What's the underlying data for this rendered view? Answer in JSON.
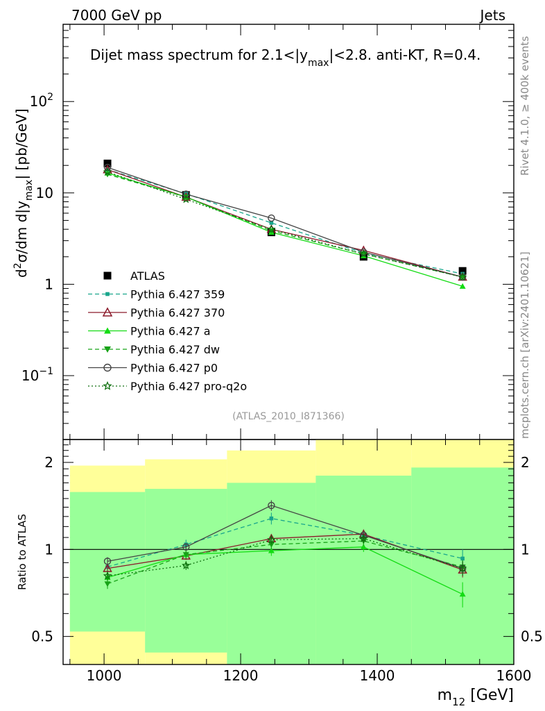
{
  "header": {
    "left": "7000 GeV pp",
    "right": "Jets"
  },
  "side_labels": {
    "rivet": "Rivet 4.1.0, ≥ 400k events",
    "mcplots": "mcplots.cern.ch [arXiv:2401.10621]"
  },
  "chart_data": [
    {
      "type": "line",
      "title_parts": {
        "pre": "Dijet mass spectrum for 2.1<|y",
        "sub": "max",
        "post": "|<2.8.  anti-KT, R=0.4."
      },
      "ylabel_parts": [
        "d",
        "2",
        "σ/dm d|y",
        "max",
        "| [pb/GeV]"
      ],
      "yscale": "log",
      "ylim": [
        0.02,
        700
      ],
      "y_ticks": [
        {
          "value": 0.1,
          "base": "10",
          "exp": "−1"
        },
        {
          "value": 1,
          "base": "1",
          "exp": ""
        },
        {
          "value": 10,
          "base": "10",
          "exp": ""
        },
        {
          "value": 100,
          "base": "10",
          "exp": "2"
        }
      ],
      "watermark": "(ATLAS_2010_I871366)",
      "x": [
        1005,
        1120,
        1245,
        1380,
        1525
      ],
      "data": {
        "name": "ATLAS",
        "values": [
          21,
          9.5,
          3.7,
          2.0,
          1.4
        ],
        "color": "#000000"
      },
      "series": [
        {
          "name": "Pythia 6.427 359",
          "values": [
            18.0,
            9.8,
            4.7,
            2.2,
            1.3
          ],
          "color": "#19a68c",
          "dash": "6,4",
          "marker": "square-small"
        },
        {
          "name": "Pythia 6.427 370",
          "values": [
            18.0,
            9.0,
            4.0,
            2.35,
            1.2
          ],
          "color": "#8b1a2b",
          "dash": "",
          "marker": "triangle-open"
        },
        {
          "name": "Pythia 6.427 a",
          "values": [
            16.5,
            9.0,
            3.7,
            2.05,
            0.95
          ],
          "color": "#14dc14",
          "dash": "",
          "marker": "triangle-filled"
        },
        {
          "name": "Pythia 6.427 dw",
          "values": [
            16.0,
            9.0,
            3.85,
            2.15,
            1.2
          ],
          "color": "#17a317",
          "dash": "6,4",
          "marker": "triangle-down"
        },
        {
          "name": "Pythia 6.427 p0",
          "values": [
            19.0,
            9.7,
            5.3,
            2.25,
            1.2
          ],
          "color": "#444444",
          "dash": "",
          "marker": "circle-open"
        },
        {
          "name": "Pythia 6.427 pro-q2o",
          "values": [
            17.0,
            8.5,
            4.0,
            2.15,
            1.2
          ],
          "color": "#0c6e0c",
          "dash": "2,3",
          "marker": "star-open"
        }
      ]
    },
    {
      "type": "line",
      "ylabel": "Ratio to ATLAS",
      "yscale": "log",
      "ylim": [
        0.4,
        2.4
      ],
      "y_ticks": [
        {
          "value": 0.5,
          "label": "0.5"
        },
        {
          "value": 1,
          "label": "1"
        },
        {
          "value": 2,
          "label": "2"
        }
      ],
      "xlim": [
        940,
        1600
      ],
      "x_ticks": [
        1000,
        1200,
        1400,
        1600
      ],
      "xlabel_parts": [
        "m",
        "12",
        " [GeV]"
      ],
      "x": [
        1005,
        1120,
        1245,
        1380,
        1525
      ],
      "bands": [
        {
          "x0": 950,
          "x1": 1060,
          "yellow": [
            0.35,
            1.95
          ],
          "green": [
            0.52,
            1.58
          ]
        },
        {
          "x0": 1060,
          "x1": 1180,
          "yellow": [
            0.35,
            2.05
          ],
          "green": [
            0.44,
            1.62
          ]
        },
        {
          "x0": 1180,
          "x1": 1310,
          "yellow": [
            0.35,
            2.2
          ],
          "green": [
            0.35,
            1.7
          ]
        },
        {
          "x0": 1310,
          "x1": 1450,
          "yellow": [
            0.35,
            2.45
          ],
          "green": [
            0.35,
            1.8
          ]
        },
        {
          "x0": 1450,
          "x1": 1600,
          "yellow": [
            0.35,
            2.45
          ],
          "green": [
            0.35,
            1.92
          ]
        }
      ],
      "reference": 1,
      "series": [
        {
          "name": "Pythia 6.427 359",
          "values": [
            0.87,
            1.04,
            1.28,
            1.12,
            0.93
          ],
          "err": [
            0.03,
            0.04,
            0.06,
            0.05,
            0.07
          ]
        },
        {
          "name": "Pythia 6.427 370",
          "values": [
            0.86,
            0.95,
            1.09,
            1.13,
            0.85
          ],
          "err": [
            0.03,
            0.03,
            0.04,
            0.04,
            0.05
          ]
        },
        {
          "name": "Pythia 6.427 a",
          "values": [
            0.8,
            0.96,
            0.99,
            1.02,
            0.7
          ],
          "err": [
            0.03,
            0.03,
            0.04,
            0.04,
            0.07
          ]
        },
        {
          "name": "Pythia 6.427 dw",
          "values": [
            0.76,
            0.96,
            1.04,
            1.07,
            0.87
          ],
          "err": [
            0.03,
            0.03,
            0.04,
            0.04,
            0.05
          ]
        },
        {
          "name": "Pythia 6.427 p0",
          "values": [
            0.91,
            1.02,
            1.42,
            1.12,
            0.86
          ],
          "err": [
            0.03,
            0.03,
            0.06,
            0.04,
            0.05
          ]
        },
        {
          "name": "Pythia 6.427 pro-q2o",
          "values": [
            0.81,
            0.88,
            1.08,
            1.09,
            0.86
          ],
          "err": [
            0.03,
            0.03,
            0.04,
            0.04,
            0.05
          ]
        }
      ]
    }
  ]
}
